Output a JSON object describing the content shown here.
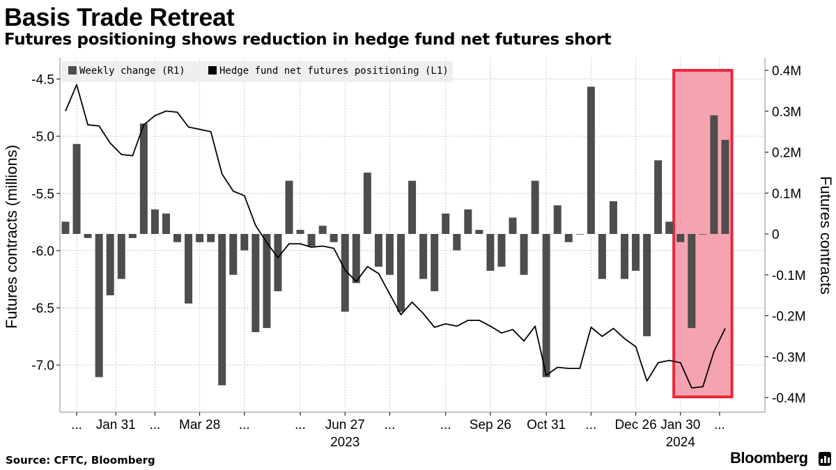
{
  "header": {
    "title": "Basis Trade Retreat",
    "subtitle": "Futures positioning shows reduction in hedge fund net futures short"
  },
  "footer": {
    "source": "Source: CFTC, Bloomberg",
    "brand": "Bloomberg"
  },
  "colors": {
    "bar": "#4d4d4d",
    "line": "#000000",
    "grid": "#c8c8c8",
    "highlight_fill": "#f5a3b0",
    "highlight_stroke": "#e8283c"
  },
  "chart_data": {
    "type": "bar+line",
    "legend_position": "top-left",
    "grid": true,
    "left_axis": {
      "label": "Futures contracts (millions)",
      "range": [
        -7.4,
        -4.4
      ],
      "ticks": [
        -4.5,
        -5.0,
        -5.5,
        -6.0,
        -6.5,
        -7.0
      ],
      "tick_labels": [
        "-4.5",
        "-5.0",
        "-5.5",
        "-6.0",
        "-6.5",
        "-7.0"
      ]
    },
    "right_axis": {
      "label": "Futures contracts",
      "range": [
        -0.42,
        0.42
      ],
      "ticks": [
        0.4,
        0.3,
        0.2,
        0.1,
        0,
        -0.1,
        -0.2,
        -0.3,
        -0.4
      ],
      "tick_labels": [
        "0.4M",
        "0.3M",
        "0.2M",
        "0.1M",
        "0",
        "-0.1M",
        "-0.2M",
        "-0.3M",
        "-0.4M"
      ]
    },
    "x_axis": {
      "tick_labels": [
        {
          "i": 1,
          "text": "..."
        },
        {
          "i": 4.5,
          "text": "Jan 31"
        },
        {
          "i": 8,
          "text": "..."
        },
        {
          "i": 12,
          "text": "Mar 28"
        },
        {
          "i": 16,
          "text": "..."
        },
        {
          "i": 21,
          "text": "..."
        },
        {
          "i": 25,
          "text": "Jun 27"
        },
        {
          "i": 29,
          "text": "..."
        },
        {
          "i": 34,
          "text": "..."
        },
        {
          "i": 38,
          "text": "Sep 26"
        },
        {
          "i": 43,
          "text": "Oct 31"
        },
        {
          "i": 47,
          "text": "..."
        },
        {
          "i": 51,
          "text": "Dec 26"
        },
        {
          "i": 55,
          "text": "Jan 30"
        },
        {
          "i": 58.5,
          "text": "..."
        }
      ],
      "year_labels": [
        {
          "i": 25,
          "text": "2023"
        },
        {
          "i": 55,
          "text": "2024"
        }
      ]
    },
    "highlight_range": [
      54.4,
      59.6
    ],
    "series": [
      {
        "name": "Weekly change (R1)",
        "kind": "bar",
        "axis": "right",
        "values": [
          0.03,
          0.22,
          -0.01,
          -0.35,
          -0.15,
          -0.11,
          -0.01,
          0.27,
          0.06,
          0.05,
          -0.02,
          -0.17,
          -0.02,
          -0.02,
          -0.37,
          -0.1,
          -0.04,
          -0.24,
          -0.23,
          -0.14,
          0.13,
          0.01,
          -0.03,
          0.02,
          -0.02,
          -0.19,
          -0.12,
          0.15,
          -0.08,
          -0.1,
          -0.19,
          0.13,
          -0.11,
          -0.14,
          0.05,
          -0.04,
          0.06,
          0.01,
          -0.09,
          -0.08,
          0.04,
          -0.1,
          0.13,
          -0.35,
          0.07,
          -0.02,
          0.0,
          0.36,
          -0.11,
          0.08,
          -0.11,
          -0.09,
          -0.25,
          0.18,
          0.03,
          -0.02,
          -0.23,
          0.0,
          0.29,
          0.23
        ]
      },
      {
        "name": "Hedge fund net futures positioning (L1)",
        "kind": "line",
        "axis": "left",
        "values": [
          -4.78,
          -4.55,
          -4.9,
          -4.91,
          -5.06,
          -5.16,
          -5.17,
          -4.9,
          -4.82,
          -4.78,
          -4.79,
          -4.92,
          -4.94,
          -4.96,
          -5.33,
          -5.48,
          -5.52,
          -5.78,
          -5.93,
          -6.06,
          -5.94,
          -5.94,
          -5.97,
          -5.96,
          -5.98,
          -6.17,
          -6.27,
          -6.14,
          -6.2,
          -6.38,
          -6.56,
          -6.45,
          -6.55,
          -6.67,
          -6.64,
          -6.66,
          -6.61,
          -6.61,
          -6.66,
          -6.72,
          -6.69,
          -6.79,
          -6.66,
          -7.09,
          -7.02,
          -7.03,
          -7.03,
          -6.67,
          -6.75,
          -6.68,
          -6.77,
          -6.84,
          -7.14,
          -6.98,
          -6.96,
          -6.98,
          -7.2,
          -7.19,
          -6.88,
          -6.68
        ]
      }
    ]
  }
}
